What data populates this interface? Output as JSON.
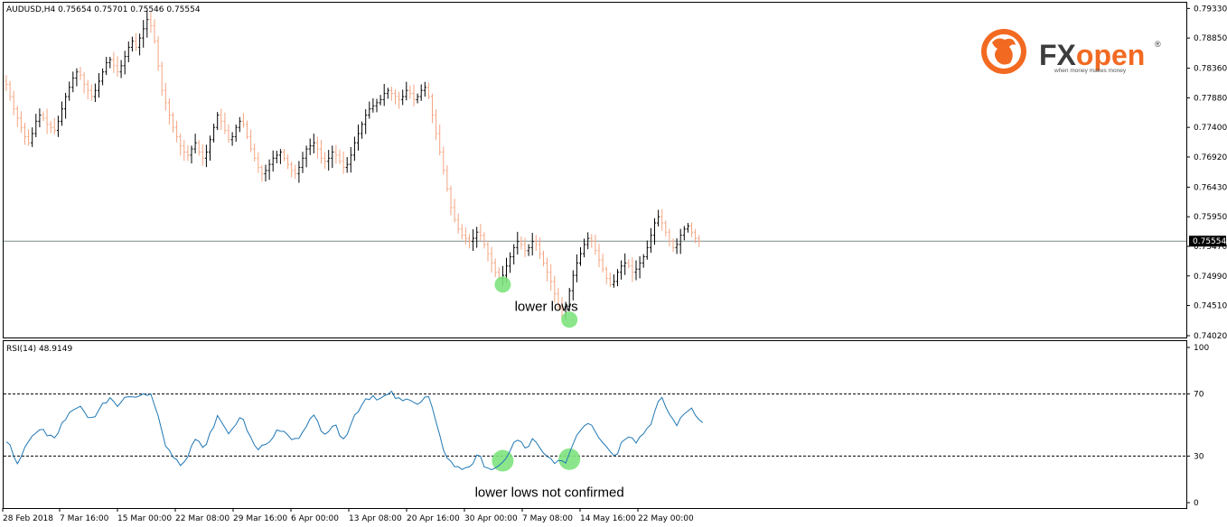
{
  "chart_data": [
    {
      "type": "candlestick",
      "symbol_header": "AUDUSD,H4  0.75654 0.75701 0.75546 0.75554",
      "ylim": [
        0.7402,
        0.7935
      ],
      "y_ticks": [
        "0.79330",
        "0.78850",
        "0.78360",
        "0.77880",
        "0.77400",
        "0.76920",
        "0.76430",
        "0.75950",
        "0.75470",
        "0.74990",
        "0.74510",
        "0.74020"
      ],
      "current_price_label": "0.75554",
      "current_price": 0.75554,
      "x_tick_labels": [
        "28 Feb 2018",
        "7 Mar 16:00",
        "15 Mar 00:00",
        "22 Mar 08:00",
        "29 Mar 16:00",
        "6 Apr 00:00",
        "13 Apr 08:00",
        "20 Apr 16:00",
        "30 Apr 00:00",
        "7 May 08:00",
        "14 May 16:00",
        "22 May 00:00"
      ],
      "closes": [
        0.781,
        0.779,
        0.777,
        0.7755,
        0.774,
        0.7725,
        0.7715,
        0.773,
        0.775,
        0.776,
        0.7755,
        0.7745,
        0.774,
        0.7735,
        0.775,
        0.777,
        0.779,
        0.7805,
        0.782,
        0.783,
        0.7825,
        0.781,
        0.78,
        0.779,
        0.78,
        0.7815,
        0.783,
        0.7845,
        0.785,
        0.784,
        0.783,
        0.784,
        0.7855,
        0.787,
        0.788,
        0.787,
        0.7885,
        0.79,
        0.7915,
        0.7905,
        0.788,
        0.784,
        0.78,
        0.778,
        0.776,
        0.774,
        0.7725,
        0.771,
        0.77,
        0.7695,
        0.7705,
        0.7715,
        0.77,
        0.769,
        0.77,
        0.772,
        0.774,
        0.776,
        0.775,
        0.7735,
        0.772,
        0.7725,
        0.774,
        0.775,
        0.7745,
        0.7725,
        0.7705,
        0.769,
        0.7675,
        0.7665,
        0.767,
        0.768,
        0.769,
        0.7695,
        0.77,
        0.769,
        0.768,
        0.767,
        0.7665,
        0.7675,
        0.769,
        0.7705,
        0.771,
        0.7715,
        0.7705,
        0.769,
        0.7685,
        0.769,
        0.77,
        0.7695,
        0.7685,
        0.7675,
        0.768,
        0.7695,
        0.7715,
        0.773,
        0.7745,
        0.776,
        0.777,
        0.7775,
        0.778,
        0.7785,
        0.7795,
        0.78,
        0.7795,
        0.779,
        0.7785,
        0.779,
        0.78,
        0.7795,
        0.7785,
        0.779,
        0.78,
        0.7805,
        0.779,
        0.776,
        0.773,
        0.77,
        0.767,
        0.764,
        0.761,
        0.759,
        0.7575,
        0.7565,
        0.756,
        0.7555,
        0.756,
        0.757,
        0.7565,
        0.755,
        0.7535,
        0.752,
        0.7505,
        0.7495,
        0.75,
        0.7515,
        0.753,
        0.7545,
        0.7555,
        0.755,
        0.754,
        0.7545,
        0.7555,
        0.755,
        0.7535,
        0.752,
        0.7505,
        0.749,
        0.747,
        0.745,
        0.7435,
        0.745,
        0.7475,
        0.75,
        0.752,
        0.7535,
        0.755,
        0.756,
        0.7555,
        0.754,
        0.7525,
        0.751,
        0.7495,
        0.7485,
        0.749,
        0.7505,
        0.7515,
        0.752,
        0.7515,
        0.7505,
        0.751,
        0.752,
        0.753,
        0.7545,
        0.7565,
        0.7585,
        0.7595,
        0.7585,
        0.757,
        0.7555,
        0.7545,
        0.755,
        0.7565,
        0.7575,
        0.758,
        0.757,
        0.756,
        0.7555
      ],
      "series": [
        {
          "name": "AUDUSD",
          "values_key": "closes"
        }
      ],
      "annotations": [
        {
          "text": "lower lows",
          "x_index": 146,
          "y": 0.7448
        }
      ],
      "highlight_points": [
        {
          "x_index": 134,
          "y": 0.7485
        },
        {
          "x_index": 152,
          "y": 0.7428
        }
      ]
    },
    {
      "type": "line",
      "header": "RSI(14) 48.9149",
      "ylim": [
        0,
        100
      ],
      "y_ticks": [
        "100",
        "70",
        "30",
        "0"
      ],
      "levels": [
        70,
        30
      ],
      "series": [
        {
          "name": "RSI(14)",
          "values": [
            40,
            36,
            30,
            25,
            28,
            35,
            40,
            42,
            45,
            48,
            46,
            44,
            43,
            42,
            45,
            50,
            55,
            58,
            60,
            62,
            61,
            58,
            56,
            54,
            57,
            60,
            63,
            66,
            68,
            66,
            64,
            65,
            67,
            69,
            70,
            68,
            69,
            70,
            71,
            69,
            63,
            55,
            45,
            38,
            32,
            28,
            26,
            25,
            27,
            30,
            35,
            40,
            38,
            36,
            38,
            44,
            50,
            55,
            52,
            48,
            45,
            47,
            52,
            55,
            54,
            48,
            42,
            38,
            36,
            35,
            37,
            40,
            43,
            45,
            47,
            45,
            43,
            41,
            40,
            43,
            47,
            51,
            53,
            55,
            52,
            48,
            46,
            47,
            50,
            48,
            45,
            43,
            45,
            50,
            56,
            60,
            64,
            67,
            68,
            69,
            68,
            67,
            68,
            69,
            70,
            68,
            66,
            65,
            66,
            68,
            66,
            64,
            65,
            67,
            68,
            60,
            50,
            42,
            35,
            30,
            26,
            24,
            22,
            22,
            23,
            24,
            26,
            29,
            28,
            25,
            23,
            22,
            21,
            22,
            25,
            30,
            34,
            38,
            40,
            38,
            35,
            37,
            40,
            38,
            34,
            31,
            29,
            28,
            27,
            26,
            25,
            27,
            32,
            38,
            44,
            48,
            50,
            52,
            51,
            47,
            43,
            40,
            37,
            33,
            31,
            33,
            38,
            42,
            44,
            43,
            40,
            42,
            45,
            48,
            52,
            58,
            64,
            66,
            62,
            57,
            53,
            51,
            53,
            57,
            60,
            61,
            58,
            55,
            51
          ]
        }
      ],
      "annotations": [
        {
          "text": "lower lows not confirmed",
          "x_index": 146,
          "y": 6
        }
      ],
      "highlight_points": [
        {
          "x_index": 134,
          "y": 27
        },
        {
          "x_index": 152,
          "y": 28
        }
      ]
    }
  ],
  "branding": {
    "logo_text": "FXopen",
    "registered_mark": "®",
    "tagline": "when money makes money",
    "logo_color": "#f26a22"
  },
  "colors": {
    "bull_candle": "#000000",
    "bear_candle": "#f4a582",
    "rsi_line": "#1f77b4",
    "highlight": "#7ee37e",
    "price_line": "#7f8c8d",
    "level_line": "#000000"
  }
}
